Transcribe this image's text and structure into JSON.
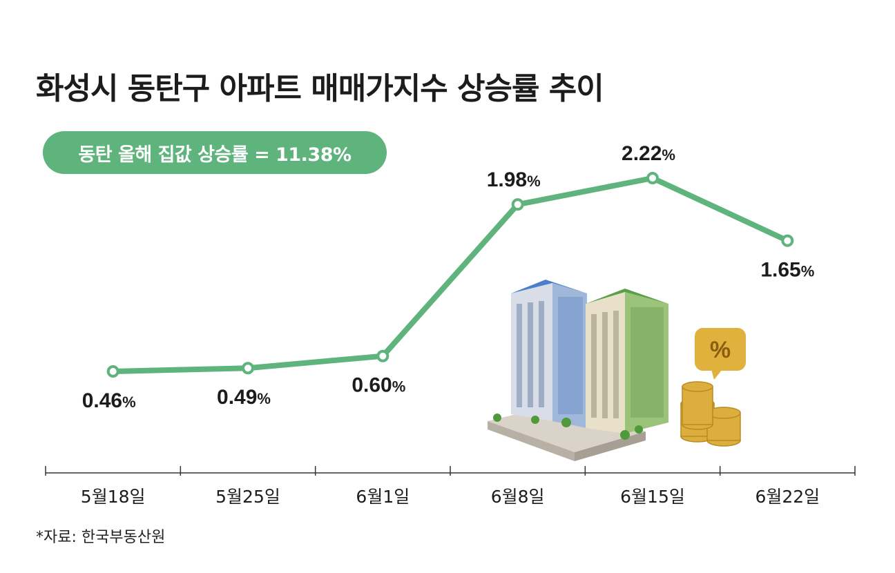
{
  "title": "화성시 동탄구 아파트 매매가지수 상승률 추이",
  "badge": "동탄 올해 집값 상승률 = 11.38%",
  "source": "*자료: 한국부동산원",
  "colors": {
    "line": "#5fb37c",
    "badge": "#5fb37c",
    "text": "#1c1c1c"
  },
  "chart_data": {
    "type": "line",
    "title": "화성시 동탄구 아파트 매매가지수 상승률 추이",
    "categories": [
      "5월18일",
      "5월25일",
      "6월1일",
      "6월8일",
      "6월15일",
      "6월22일"
    ],
    "values": [
      0.46,
      0.49,
      0.6,
      1.98,
      2.22,
      1.65
    ],
    "labels": [
      "0.46",
      "0.49",
      "0.60",
      "1.98",
      "2.22",
      "1.65"
    ],
    "unit": "%",
    "label_positions": [
      "below",
      "below",
      "below",
      "above",
      "above",
      "below"
    ],
    "grid": false,
    "legend": "none"
  }
}
